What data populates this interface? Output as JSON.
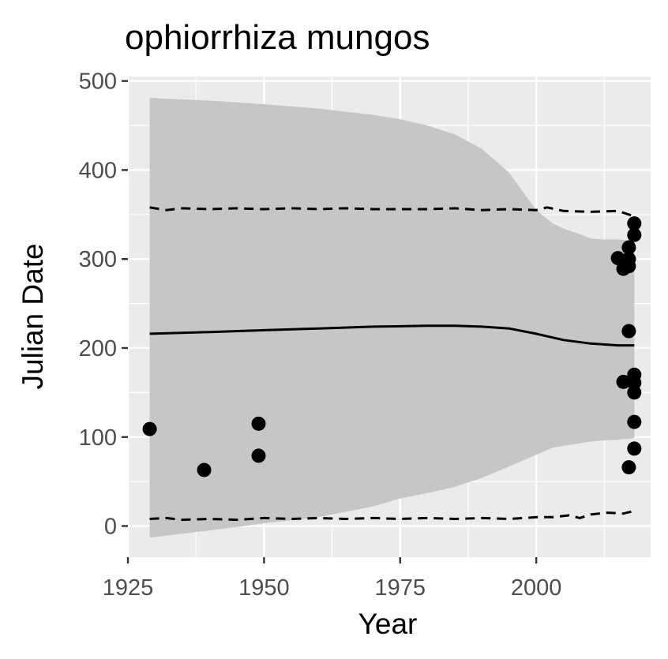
{
  "chart_data": {
    "type": "scatter",
    "title": "ophiorrhiza mungos",
    "xlabel": "Year",
    "ylabel": "Julian Date",
    "xlim": [
      1925,
      2021
    ],
    "ylim": [
      -35,
      505
    ],
    "x_ticks": [
      "1925",
      "1950",
      "1975",
      "2000"
    ],
    "y_ticks": [
      "0",
      "100",
      "200",
      "300",
      "400",
      "500"
    ],
    "grid": true,
    "legend": "none",
    "colors": {
      "panel": "#ebebeb",
      "grid": "#ffffff",
      "ribbon": "#c6c6c6",
      "line": "#000000",
      "points": "#000000",
      "tick_text": "#4d4d4d"
    },
    "points": [
      {
        "x": 1929,
        "y": 109
      },
      {
        "x": 1939,
        "y": 63
      },
      {
        "x": 1949,
        "y": 115
      },
      {
        "x": 1949,
        "y": 79
      },
      {
        "x": 2015,
        "y": 301
      },
      {
        "x": 2016,
        "y": 289
      },
      {
        "x": 2016,
        "y": 162
      },
      {
        "x": 2017,
        "y": 313
      },
      {
        "x": 2017,
        "y": 300
      },
      {
        "x": 2017,
        "y": 292
      },
      {
        "x": 2017,
        "y": 219
      },
      {
        "x": 2017,
        "y": 66
      },
      {
        "x": 2018,
        "y": 340
      },
      {
        "x": 2018,
        "y": 327
      },
      {
        "x": 2018,
        "y": 170
      },
      {
        "x": 2018,
        "y": 161
      },
      {
        "x": 2018,
        "y": 150
      },
      {
        "x": 2018,
        "y": 117
      },
      {
        "x": 2018,
        "y": 87
      }
    ],
    "series": [
      {
        "style": "solid",
        "x": [
          1929,
          1940,
          1950,
          1960,
          1970,
          1980,
          1985,
          1990,
          1995,
          2000,
          2005,
          2010,
          2015,
          2018
        ],
        "y": [
          216,
          218,
          220,
          222,
          224,
          225,
          225,
          224,
          222,
          216,
          209,
          205,
          203,
          203
        ]
      },
      {
        "style": "dashed",
        "x": [
          1929,
          1932,
          1935,
          1940,
          1945,
          1950,
          1955,
          1960,
          1965,
          1970,
          1975,
          1980,
          1985,
          1990,
          1995,
          2000,
          2002,
          2005,
          2010,
          2015,
          2016,
          2018
        ],
        "y": [
          358,
          355,
          357,
          356,
          357,
          356,
          357,
          356,
          357,
          356,
          356,
          356,
          357,
          355,
          356,
          355,
          358,
          354,
          353,
          354,
          352,
          348
        ]
      },
      {
        "style": "dashed",
        "x": [
          1929,
          1932,
          1935,
          1940,
          1945,
          1950,
          1955,
          1960,
          1965,
          1970,
          1975,
          1980,
          1985,
          1990,
          1995,
          2000,
          2003,
          2006,
          2008,
          2010,
          2013,
          2016,
          2018
        ],
        "y": [
          8,
          9,
          7,
          8,
          7,
          9,
          8,
          9,
          8,
          9,
          8,
          9,
          8,
          9,
          8,
          10,
          10,
          12,
          9,
          13,
          15,
          14,
          17
        ]
      }
    ],
    "ribbon": {
      "x": [
        1929,
        1940,
        1950,
        1960,
        1970,
        1975,
        1980,
        1985,
        1990,
        1995,
        2000,
        2003,
        2005,
        2008,
        2010,
        2012,
        2015,
        2017,
        2018
      ],
      "upper": [
        481,
        478,
        474,
        469,
        462,
        457,
        450,
        440,
        424,
        397,
        355,
        340,
        334,
        328,
        323,
        322,
        322,
        321,
        320
      ],
      "lower": [
        -13,
        -5,
        3,
        10,
        22,
        31,
        37,
        44,
        54,
        67,
        80,
        88,
        90,
        93,
        95,
        96,
        97,
        98,
        99
      ]
    }
  }
}
